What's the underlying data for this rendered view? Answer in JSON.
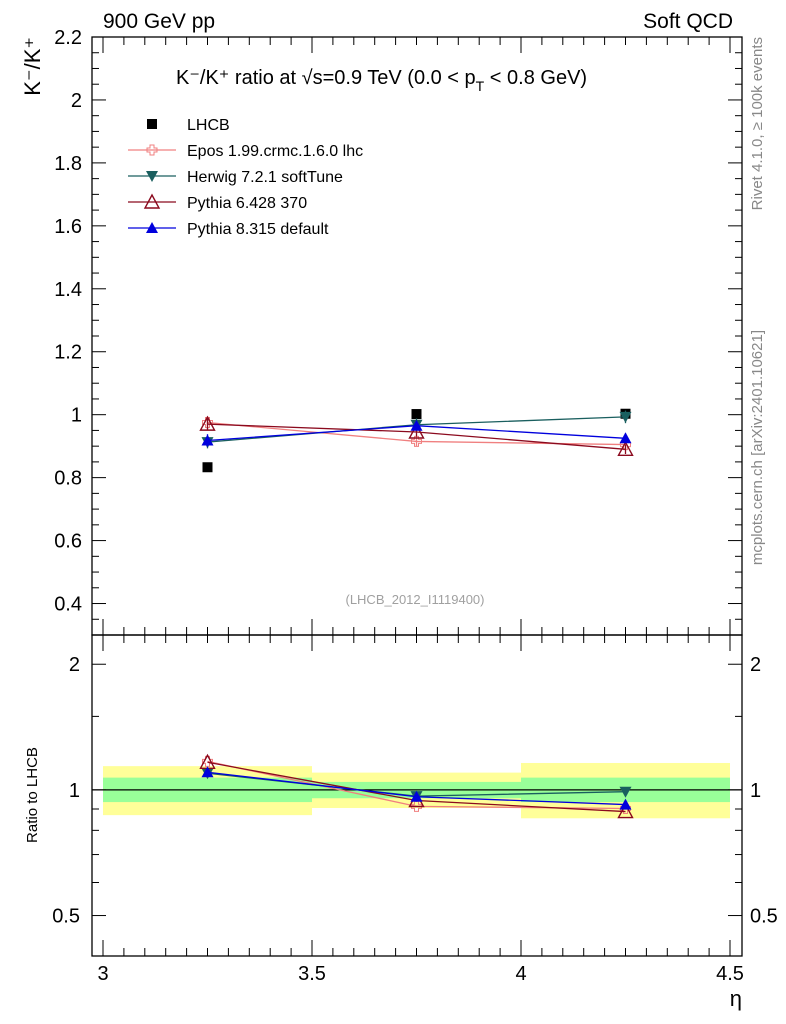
{
  "header": {
    "left": "900 GeV pp",
    "right": "Soft QCD"
  },
  "side": {
    "rivet": "Rivet 4.1.0, ≥ 100k events",
    "mcplots": "mcplots.cern.ch [arXiv:2401.10621]"
  },
  "watermark": "(LHCB_2012_I1119400)",
  "title": {
    "main": "K⁻/K⁺ ratio at √s=0.9 TeV (0.0 < p",
    "sub": "T",
    "end": " < 0.8 GeV)"
  },
  "colors": {
    "lhcb": "#000000",
    "epos": "#f08080",
    "herwig": "#1a5f5f",
    "pythia6": "#8b0a1e",
    "pythia8": "#0000dd",
    "band_inner": "#99ff99",
    "band_outer": "#ffff99"
  },
  "chart_data": {
    "type": "scatter",
    "xlabel": "η",
    "ylabel": "K⁻/K⁺",
    "ratio_ylabel": "Ratio to LHCB",
    "xlim": [
      3.0,
      4.5
    ],
    "ylim": [
      0.3,
      2.2
    ],
    "ratio_ylim": [
      0.4,
      2.35
    ],
    "x_ticks": [
      "3",
      "3.5",
      "4",
      "4.5"
    ],
    "y_ticks": [
      "0.4",
      "0.6",
      "0.8",
      "1",
      "1.2",
      "1.4",
      "1.6",
      "1.8",
      "2",
      "2.2"
    ],
    "ratio_ticks": [
      "0.5",
      "1",
      "2"
    ],
    "x": [
      3.25,
      3.75,
      4.25
    ],
    "x_bins": [
      [
        3.0,
        3.5
      ],
      [
        3.5,
        4.0
      ],
      [
        4.0,
        4.5
      ]
    ],
    "series": [
      {
        "key": "lhcb",
        "name": "LHCB",
        "marker": "square",
        "values": [
          0.833,
          1.002,
          1.003
        ]
      },
      {
        "key": "epos",
        "name": "Epos 1.99.crmc.1.6.0 lhc",
        "marker": "open-cross",
        "values": [
          0.975,
          0.915,
          0.905
        ],
        "errors": [
          0.02,
          0.015,
          0.015
        ]
      },
      {
        "key": "herwig",
        "name": "Herwig 7.2.1 softTune",
        "marker": "triangle-down",
        "values": [
          0.913,
          0.968,
          0.993
        ],
        "errors": [
          0.02,
          0.02,
          0.02
        ]
      },
      {
        "key": "pythia6",
        "name": "Pythia 6.428 370",
        "marker": "open-triangle",
        "values": [
          0.97,
          0.945,
          0.89
        ],
        "errors": [
          0.02,
          0.015,
          0.015
        ]
      },
      {
        "key": "pythia8",
        "name": "Pythia 8.315 default",
        "marker": "triangle-up",
        "values": [
          0.918,
          0.965,
          0.925
        ],
        "errors": [
          0.02,
          0.015,
          0.015
        ]
      }
    ],
    "ratio_band_inner": [
      [
        0.935,
        1.07
      ],
      [
        0.955,
        1.045
      ],
      [
        0.935,
        1.07
      ]
    ],
    "ratio_band_outer": [
      [
        0.87,
        1.14
      ],
      [
        0.905,
        1.1
      ],
      [
        0.855,
        1.16
      ]
    ]
  }
}
